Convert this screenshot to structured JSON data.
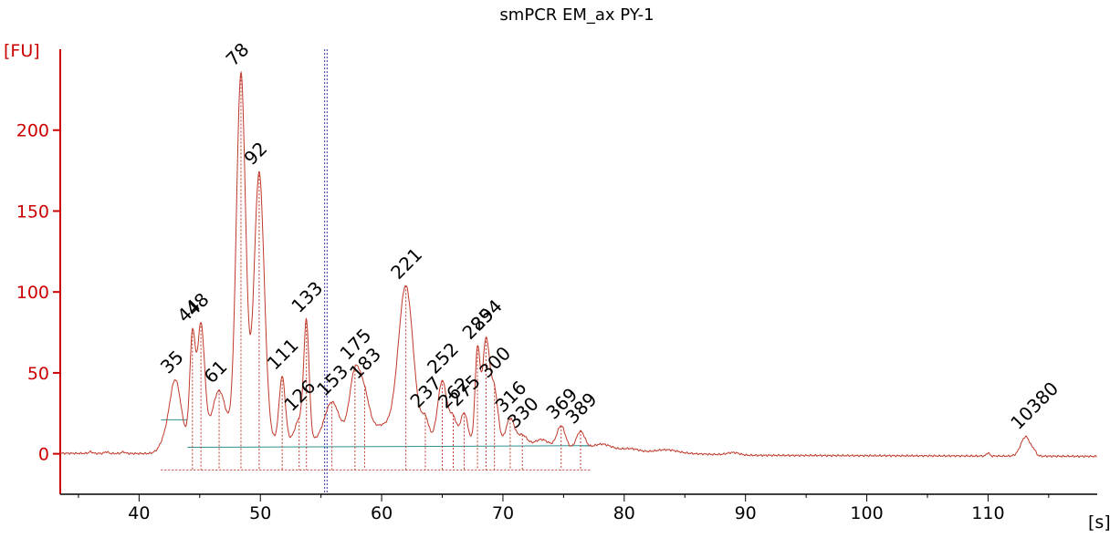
{
  "chart_data": {
    "type": "line",
    "title": "smPCR EM_ax PY-1",
    "ylabel": "[FU]",
    "xlabel": "[s]",
    "xlim": [
      33.5,
      119
    ],
    "ylim": [
      -25,
      250
    ],
    "xticks": [
      "40",
      "50",
      "60",
      "70",
      "80",
      "90",
      "100",
      "110"
    ],
    "yticks": [
      "0",
      "50",
      "100",
      "150",
      "200"
    ],
    "xtick_values": [
      40,
      50,
      60,
      70,
      80,
      90,
      100,
      110
    ],
    "ytick_values": [
      0,
      50,
      100,
      150,
      200
    ],
    "colors": {
      "trace": "#c0392b",
      "axis": "#cc0000",
      "baseline": "#2f8f8f",
      "marker_line": "#3333aa",
      "lower_marker": "#008000",
      "upper_marker": "#8a2be2"
    },
    "peaks": [
      {
        "label": "35",
        "x": 43.0,
        "y": 39,
        "width": 0.45,
        "color": "lower_marker"
      },
      {
        "label": "44",
        "x": 44.4,
        "y": 64,
        "width": 0.22
      },
      {
        "label": "48",
        "x": 45.1,
        "y": 72,
        "width": 0.3
      },
      {
        "label": "61",
        "x": 46.6,
        "y": 31,
        "width": 0.55
      },
      {
        "label": "78",
        "x": 48.4,
        "y": 227,
        "width": 0.38
      },
      {
        "label": "92",
        "x": 49.9,
        "y": 166,
        "width": 0.42
      },
      {
        "label": "111",
        "x": 51.8,
        "y": 40,
        "width": 0.25
      },
      {
        "label": "126",
        "x": 53.2,
        "y": 13,
        "width": 0.35
      },
      {
        "label": "133",
        "x": 53.8,
        "y": 72,
        "width": 0.22
      },
      {
        "label": "153",
        "x": 55.9,
        "y": 24,
        "width": 0.6
      },
      {
        "label": "175",
        "x": 57.8,
        "y": 40,
        "width": 0.45
      },
      {
        "label": "183",
        "x": 58.6,
        "y": 20,
        "width": 0.4
      },
      {
        "label": "221",
        "x": 62.0,
        "y": 91,
        "width": 0.6
      },
      {
        "label": "237",
        "x": 63.6,
        "y": 13,
        "width": 0.3
      },
      {
        "label": "252",
        "x": 65.0,
        "y": 38,
        "width": 0.38
      },
      {
        "label": "262",
        "x": 65.9,
        "y": 15,
        "width": 0.3
      },
      {
        "label": "275",
        "x": 66.8,
        "y": 19,
        "width": 0.3
      },
      {
        "label": "285",
        "x": 67.9,
        "y": 57,
        "width": 0.2
      },
      {
        "label": "294",
        "x": 68.6,
        "y": 64,
        "width": 0.3
      },
      {
        "label": "300",
        "x": 69.3,
        "y": 33,
        "width": 0.3
      },
      {
        "label": "316",
        "x": 70.6,
        "y": 17,
        "width": 0.35
      },
      {
        "label": "330",
        "x": 71.6,
        "y": 7,
        "width": 0.4
      },
      {
        "label": "369",
        "x": 74.8,
        "y": 14,
        "width": 0.35
      },
      {
        "label": "389",
        "x": 76.4,
        "y": 11,
        "width": 0.35
      },
      {
        "label": "10380",
        "x": 113.1,
        "y": 12,
        "width": 0.4,
        "color": "upper_marker"
      }
    ],
    "marker_lines": [
      55.3,
      55.5
    ]
  }
}
